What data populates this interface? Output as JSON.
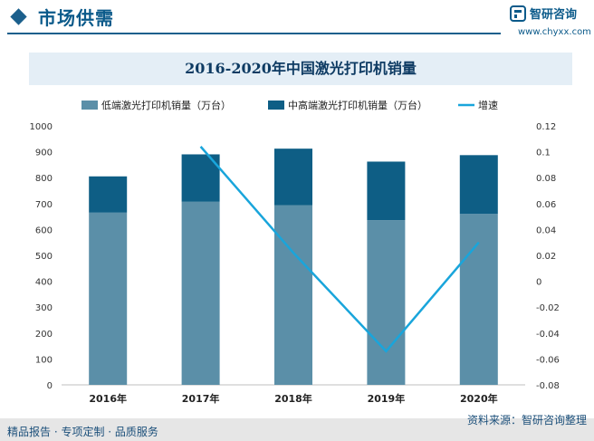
{
  "header": {
    "title": "市场供需"
  },
  "logo": {
    "name": "智研咨询",
    "url": "www.chyxx.com"
  },
  "chart_data": {
    "type": "bar",
    "title": "2016-2020年中国激光打印机销量",
    "categories": [
      "2016年",
      "2017年",
      "2018年",
      "2019年",
      "2020年"
    ],
    "series": [
      {
        "name": "低端激光打印机销量（万台）",
        "kind": "bar",
        "stack": "sales",
        "axis": "left",
        "color": "#5b8fa8",
        "values": [
          665,
          707,
          694,
          636,
          660
        ]
      },
      {
        "name": "中高端激光打印机销量（万台）",
        "kind": "bar",
        "stack": "sales",
        "axis": "left",
        "color": "#0e5e85",
        "values": [
          140,
          183,
          218,
          226,
          227
        ]
      },
      {
        "name": "增速",
        "kind": "line",
        "axis": "right",
        "color": "#19a5db",
        "values": [
          null,
          0.104,
          0.022,
          -0.054,
          0.03
        ]
      }
    ],
    "ylim_left": [
      0,
      1000
    ],
    "yticks_left": [
      "0",
      "100",
      "200",
      "300",
      "400",
      "500",
      "600",
      "700",
      "800",
      "900",
      "1000"
    ],
    "ylim_right": [
      -0.08,
      0.12
    ],
    "yticks_right": [
      "-0.08",
      "-0.06",
      "-0.04",
      "-0.02",
      "0",
      "0.02",
      "0.04",
      "0.06",
      "0.08",
      "0.1",
      "0.12"
    ],
    "legend": "top"
  },
  "footer": {
    "left": "精品报告 · 专项定制 · 品质服务",
    "source": "资料来源：智研咨询整理"
  }
}
